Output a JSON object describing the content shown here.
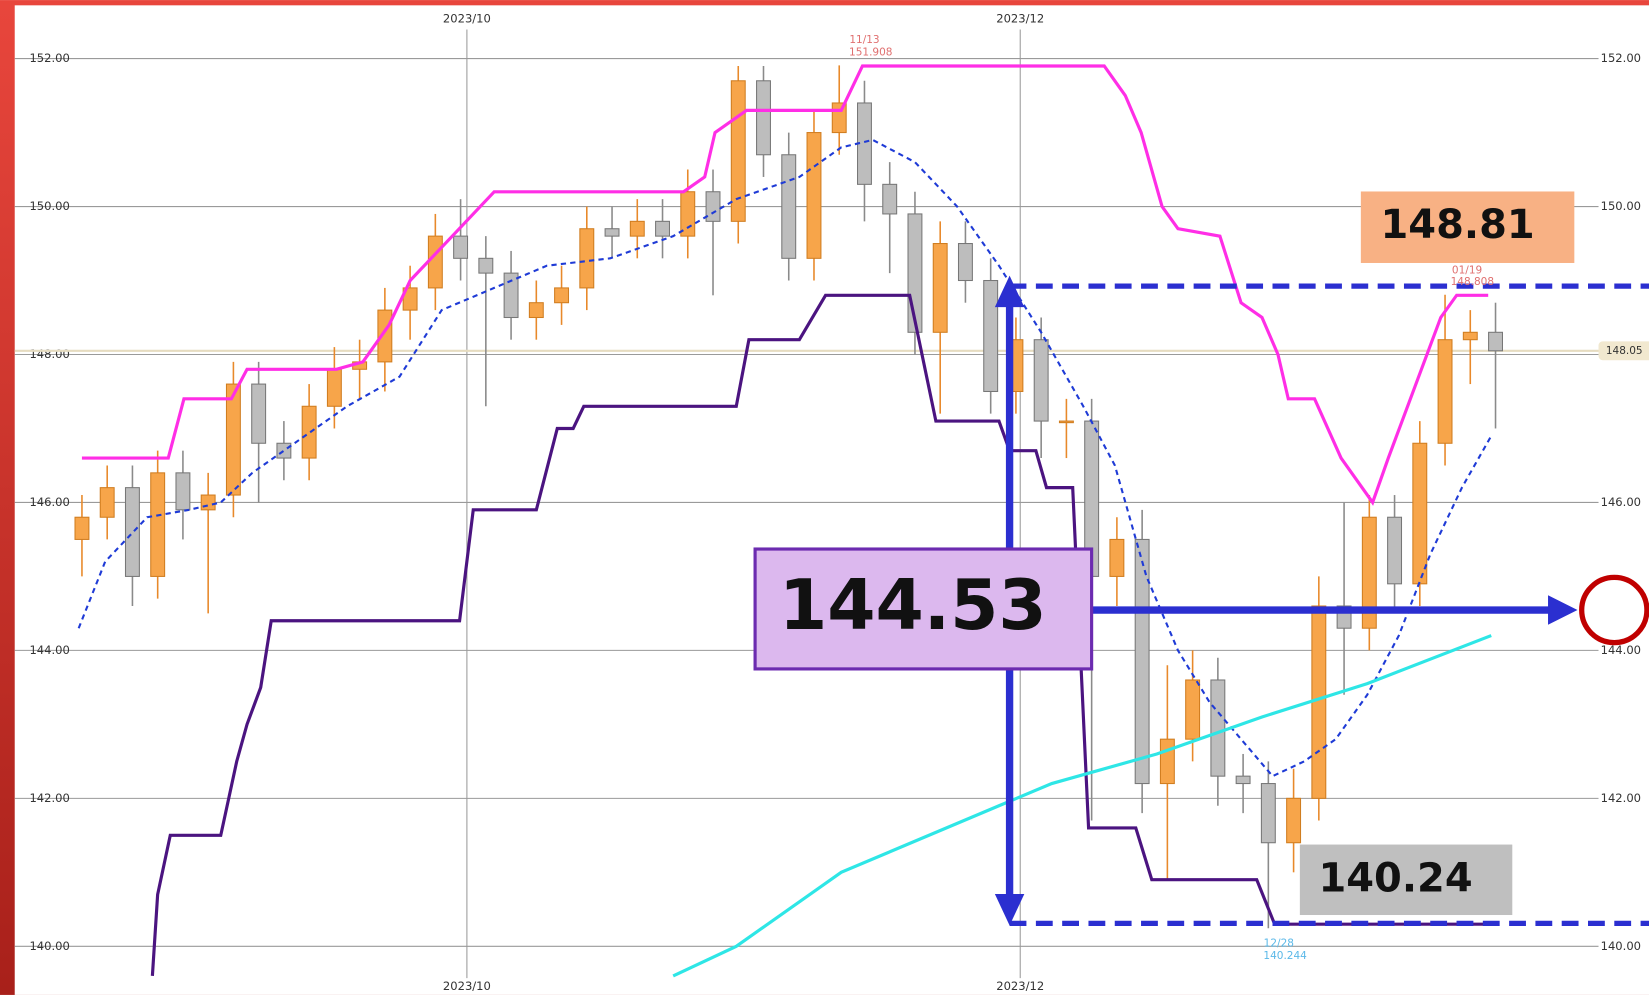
{
  "chart_data": {
    "type": "candlestick",
    "x": [
      0,
      1,
      2,
      3,
      4,
      5,
      6,
      7,
      8,
      9,
      10,
      11,
      12,
      13,
      14,
      15,
      16,
      17,
      18,
      19,
      20,
      21,
      22,
      23,
      24,
      25,
      26,
      27,
      28,
      29,
      30,
      31,
      32,
      33,
      34,
      35,
      36,
      37,
      38,
      39,
      40,
      41,
      42,
      43,
      44,
      45,
      46,
      47,
      48,
      49,
      50,
      51,
      52,
      53,
      54,
      55,
      56
    ],
    "open": [
      145.5,
      145.8,
      146.2,
      145.0,
      146.4,
      145.9,
      146.1,
      147.6,
      146.8,
      146.6,
      147.3,
      147.8,
      147.9,
      148.6,
      148.9,
      149.6,
      149.3,
      149.1,
      148.5,
      148.7,
      148.9,
      149.7,
      149.6,
      149.8,
      149.6,
      150.2,
      149.8,
      151.7,
      150.7,
      149.3,
      151.0,
      151.4,
      150.3,
      149.9,
      148.3,
      149.5,
      149.0,
      147.5,
      148.2,
      147.1,
      147.1,
      145.0,
      145.5,
      142.2,
      142.8,
      143.6,
      142.3,
      142.2,
      141.4,
      142.0,
      144.6,
      144.3,
      145.8,
      144.9,
      146.8,
      148.2,
      148.3
    ],
    "high": [
      146.1,
      146.5,
      146.5,
      146.7,
      146.7,
      146.4,
      147.9,
      147.9,
      147.1,
      147.6,
      148.1,
      148.2,
      148.9,
      149.2,
      149.9,
      150.1,
      149.6,
      149.4,
      149.0,
      149.2,
      150.0,
      150.0,
      150.1,
      150.1,
      150.5,
      150.5,
      151.9,
      151.9,
      151.0,
      151.3,
      151.908,
      151.7,
      150.6,
      150.2,
      149.8,
      149.8,
      149.3,
      148.5,
      148.5,
      147.4,
      147.4,
      145.8,
      145.9,
      143.8,
      144.0,
      143.9,
      142.6,
      142.5,
      142.4,
      145.0,
      146.0,
      146.1,
      146.1,
      147.1,
      148.808,
      148.6,
      148.7
    ],
    "low": [
      145.0,
      145.5,
      144.6,
      144.7,
      145.5,
      144.5,
      145.8,
      146.0,
      146.3,
      146.3,
      147.0,
      147.4,
      147.5,
      148.2,
      148.6,
      149.0,
      147.3,
      148.2,
      148.2,
      148.4,
      148.6,
      149.3,
      149.3,
      149.3,
      149.3,
      148.8,
      149.5,
      150.4,
      149.0,
      149.0,
      150.7,
      149.8,
      149.1,
      148.0,
      147.2,
      148.7,
      147.2,
      147.2,
      146.6,
      146.6,
      141.7,
      144.6,
      141.8,
      140.9,
      142.5,
      141.9,
      141.8,
      140.244,
      141.0,
      141.7,
      143.4,
      144.0,
      144.5,
      144.6,
      146.5,
      147.6,
      147.0
    ],
    "close": [
      145.8,
      146.2,
      145.0,
      146.4,
      145.9,
      146.1,
      147.6,
      146.8,
      146.6,
      147.3,
      147.8,
      147.9,
      148.6,
      148.9,
      149.6,
      149.3,
      149.1,
      148.5,
      148.7,
      148.9,
      149.7,
      149.6,
      149.8,
      149.6,
      150.2,
      149.8,
      151.7,
      150.7,
      149.3,
      151.0,
      151.4,
      150.3,
      149.9,
      148.3,
      149.5,
      149.0,
      147.5,
      148.2,
      147.1,
      147.1,
      145.0,
      145.5,
      142.2,
      142.8,
      143.6,
      142.3,
      142.2,
      141.4,
      142.0,
      144.6,
      144.3,
      145.8,
      144.9,
      146.8,
      148.2,
      148.3,
      148.05
    ],
    "up_color": "#f7a54a",
    "down_color": "#bdbdbd",
    "series": [
      {
        "color": "#ff2ee6",
        "dashed": false,
        "x": [
          0,
          3.42,
          4.04,
          5.92,
          6.54,
          10.08,
          11.13,
          12.17,
          13,
          14.67,
          16.33,
          23.83,
          24.67,
          25.08,
          26.33,
          30.08,
          30.92,
          40.5,
          41.33,
          41.96,
          42.79,
          43.42,
          45.08,
          45.92,
          46.75,
          47.38,
          47.79,
          48.83,
          49.88,
          51.13,
          51.75,
          53.83,
          54.46,
          55.71
        ],
        "values": [
          146.6,
          146.6,
          147.4,
          147.4,
          147.8,
          147.8,
          147.9,
          148.4,
          149.0,
          149.6,
          150.2,
          150.2,
          150.4,
          151.0,
          151.3,
          151.3,
          151.9,
          151.9,
          151.5,
          151.0,
          150.0,
          149.7,
          149.6,
          148.7,
          148.5,
          148.0,
          147.4,
          147.4,
          146.6,
          146.0,
          146.6,
          148.5,
          148.8,
          148.8
        ]
      },
      {
        "color": "#4b1480",
        "dashed": false,
        "x": [
          2.79,
          3,
          3.5,
          5.5,
          6.13,
          6.54,
          7.08,
          7.5,
          8,
          14.96,
          15.5,
          18,
          18.83,
          19.46,
          19.88,
          25.92,
          26.42,
          28.42,
          29.46,
          32.79,
          33.83,
          36.33,
          36.75,
          37.79,
          38.21,
          39.25,
          39.88,
          41.75,
          42.38,
          46.54,
          47.25,
          55.83
        ],
        "values": [
          139.6,
          140.7,
          141.5,
          141.5,
          142.5,
          143.0,
          143.5,
          144.4,
          144.4,
          144.4,
          145.9,
          145.9,
          147.0,
          147.0,
          147.3,
          147.3,
          148.2,
          148.2,
          148.8,
          148.8,
          147.1,
          147.1,
          146.7,
          146.7,
          146.2,
          146.2,
          141.6,
          141.6,
          140.9,
          140.9,
          140.3,
          140.3
        ]
      },
      {
        "color": "#1f3bd6",
        "dashed": true,
        "x": [
          -0.13,
          0.92,
          2.58,
          4.25,
          5.5,
          6.75,
          8.42,
          10.5,
          12.58,
          14.25,
          16.33,
          18.42,
          20.92,
          23.42,
          25.92,
          28.42,
          30.08,
          31.33,
          33,
          34.67,
          36.33,
          38,
          39.67,
          40.92,
          42.17,
          43.42,
          44.67,
          45.92,
          47.17,
          48.42,
          49.67,
          50.92,
          52.17,
          53.42,
          54.67,
          55.83
        ],
        "values": [
          144.3,
          145.2,
          145.8,
          145.9,
          146.0,
          146.4,
          146.8,
          147.3,
          147.7,
          148.6,
          148.9,
          149.2,
          149.3,
          149.6,
          150.1,
          150.4,
          150.8,
          150.9,
          150.6,
          150.0,
          149.2,
          148.3,
          147.3,
          146.5,
          145.0,
          144.0,
          143.3,
          142.8,
          142.3,
          142.5,
          142.8,
          143.4,
          144.2,
          145.3,
          146.2,
          146.9
        ]
      },
      {
        "color": "#2ee6e6",
        "dashed": false,
        "x": [
          23.42,
          25.92,
          30.08,
          36.33,
          38.42,
          42.58,
          46.75,
          50.92,
          55.83
        ],
        "values": [
          139.6,
          140.0,
          141.0,
          141.9,
          142.2,
          142.6,
          143.1,
          143.55,
          144.2
        ]
      }
    ],
    "xlim": [
      -2.83,
      60.08
    ],
    "xticks": [
      {
        "value": 15.25,
        "label": "2023/10"
      },
      {
        "value": 37.17,
        "label": "2023/12"
      }
    ],
    "ylim": [
      139.57,
      152.72
    ],
    "yticks": [
      {
        "value": 140,
        "label": "140.00"
      },
      {
        "value": 142,
        "label": "142.00"
      },
      {
        "value": 144,
        "label": "144.00"
      },
      {
        "value": 146,
        "label": "146.00"
      },
      {
        "value": 148,
        "label": "148.00"
      },
      {
        "value": 150,
        "label": "150.00"
      },
      {
        "value": 152,
        "label": "152.00"
      }
    ],
    "grid": true,
    "last_price": {
      "value": 148.05,
      "label": "148.05"
    },
    "annotations": [
      "11/13",
      "151.908",
      "01/19",
      "148.808",
      "12/28",
      "140.244"
    ],
    "callouts": [
      "148.81",
      "144.53",
      "140.24"
    ]
  }
}
